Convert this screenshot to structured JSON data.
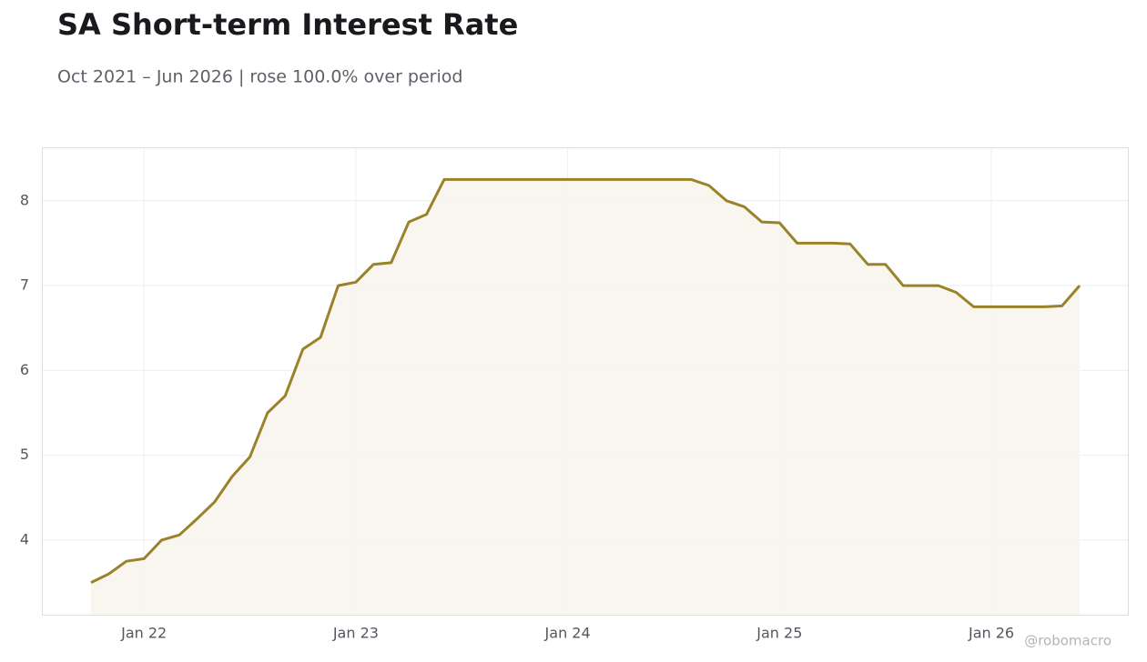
{
  "chart_data": {
    "type": "line",
    "title": "SA Short-term Interest Rate",
    "subtitle": "Oct 2021 – Jun 2026 | rose 100.0% over period",
    "watermark": "@robomacro",
    "x": [
      "2021-10",
      "2021-11",
      "2021-12",
      "2022-01",
      "2022-02",
      "2022-03",
      "2022-04",
      "2022-05",
      "2022-06",
      "2022-07",
      "2022-08",
      "2022-09",
      "2022-10",
      "2022-11",
      "2022-12",
      "2023-01",
      "2023-02",
      "2023-03",
      "2023-04",
      "2023-05",
      "2023-06",
      "2023-07",
      "2023-08",
      "2023-09",
      "2023-10",
      "2023-11",
      "2023-12",
      "2024-01",
      "2024-02",
      "2024-03",
      "2024-04",
      "2024-05",
      "2024-06",
      "2024-07",
      "2024-08",
      "2024-09",
      "2024-10",
      "2024-11",
      "2024-12",
      "2025-01",
      "2025-02",
      "2025-03",
      "2025-04",
      "2025-05",
      "2025-06",
      "2025-07",
      "2025-08",
      "2025-09",
      "2025-10",
      "2025-11",
      "2025-12",
      "2026-01",
      "2026-02",
      "2026-03",
      "2026-04",
      "2026-05",
      "2026-06"
    ],
    "series": [
      {
        "name": "SA Short-term Interest Rate",
        "color": "#9a8229",
        "fill": "#f7f4ec",
        "values": [
          3.5,
          3.6,
          3.75,
          3.78,
          4.0,
          4.06,
          4.25,
          4.45,
          4.75,
          4.98,
          5.5,
          5.7,
          6.25,
          6.39,
          7.0,
          7.04,
          7.25,
          7.27,
          7.75,
          7.84,
          8.25,
          8.25,
          8.25,
          8.25,
          8.25,
          8.25,
          8.25,
          8.25,
          8.25,
          8.25,
          8.25,
          8.25,
          8.25,
          8.25,
          8.25,
          8.18,
          8.0,
          7.93,
          7.75,
          7.74,
          7.5,
          7.5,
          7.5,
          7.49,
          7.25,
          7.25,
          7.0,
          7.0,
          7.0,
          6.92,
          6.75,
          6.75,
          6.75,
          6.75,
          6.75,
          6.76,
          7.0
        ]
      }
    ],
    "xticks": [
      {
        "value": "2022-01",
        "label": "Jan 22"
      },
      {
        "value": "2023-01",
        "label": "Jan 23"
      },
      {
        "value": "2024-01",
        "label": "Jan 24"
      },
      {
        "value": "2025-01",
        "label": "Jan 25"
      },
      {
        "value": "2026-01",
        "label": "Jan 26"
      }
    ],
    "ylim": [
      3.12,
      8.63
    ],
    "yticks": [
      4,
      5,
      6,
      7,
      8
    ],
    "grid": true
  }
}
